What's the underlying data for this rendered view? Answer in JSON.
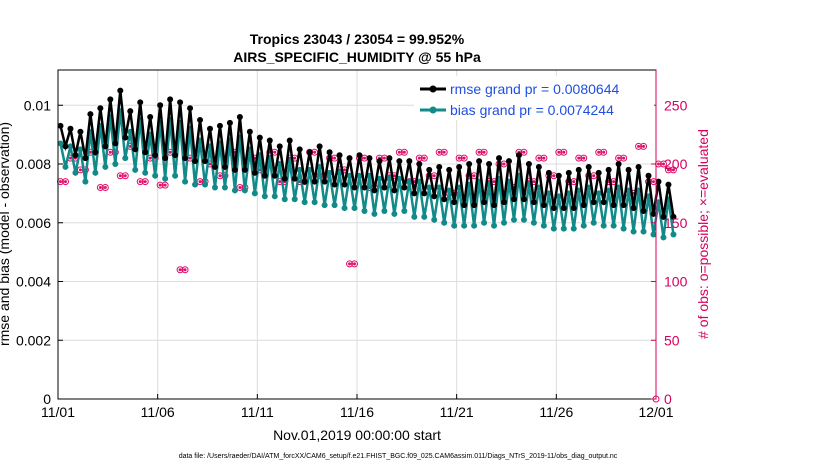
{
  "chart_data": {
    "type": "line",
    "title_line1": "Tropics 23043 / 23054 = 99.952%",
    "title_line2": "AIRS_SPECIFIC_HUMIDITY @ 55 hPa",
    "xlabel": "Nov.01,2019 00:00:00 start",
    "ylabel": "rmse and bias (model - observation)",
    "y2label": "# of obs: o=possible; ×=evaluated",
    "footer": "data file: /Users/raeder/DAI/ATM_forcXX/CAM6_setup/f.e21.FHIST_BGC.f09_025.CAM6assim.011/Diags_NTrS_2019-11/obs_diag_output.nc",
    "xlim": [
      0,
      30
    ],
    "ylim": [
      0,
      0.0112
    ],
    "y2lim": [
      0,
      280
    ],
    "x_ticks": [
      0,
      5,
      10,
      15,
      20,
      25,
      30
    ],
    "x_tick_labels": [
      "11/01",
      "11/06",
      "11/11",
      "11/16",
      "11/21",
      "11/26",
      "12/01"
    ],
    "y_ticks": [
      0,
      0.002,
      0.004,
      0.006,
      0.008,
      0.01
    ],
    "y_tick_labels": [
      "0",
      "0.002",
      "0.004",
      "0.006",
      "0.008",
      "0.01"
    ],
    "y2_ticks": [
      0,
      50,
      100,
      150,
      200,
      250
    ],
    "y2_tick_labels": [
      "0",
      "50",
      "100",
      "150",
      "200",
      "250"
    ],
    "colors": {
      "rmse": "#000000",
      "bias": "#128a8a",
      "obs": "#e0106a",
      "legend_text": "#1f4fe0",
      "right_axis": "#d6005e"
    },
    "series": [
      {
        "name": "rmse grand pr = 0.0080644",
        "start": 0.125,
        "step": 0.25,
        "values": [
          0.0093,
          0.0086,
          0.0092,
          0.0083,
          0.0091,
          0.0082,
          0.0097,
          0.0084,
          0.0099,
          0.0086,
          0.0102,
          0.0087,
          0.0105,
          0.0089,
          0.0098,
          0.0085,
          0.0101,
          0.0084,
          0.0096,
          0.0083,
          0.01,
          0.0082,
          0.0102,
          0.0083,
          0.0101,
          0.0082,
          0.0099,
          0.0081,
          0.0095,
          0.0081,
          0.0092,
          0.0079,
          0.0093,
          0.0079,
          0.0094,
          0.0078,
          0.0096,
          0.0078,
          0.0091,
          0.0077,
          0.0089,
          0.0076,
          0.0088,
          0.0076,
          0.0086,
          0.0075,
          0.0088,
          0.0075,
          0.0085,
          0.0074,
          0.0084,
          0.0074,
          0.0086,
          0.0074,
          0.0084,
          0.0073,
          0.0083,
          0.0073,
          0.0082,
          0.0072,
          0.0083,
          0.0072,
          0.0082,
          0.0071,
          0.0081,
          0.0072,
          0.0082,
          0.0071,
          0.0081,
          0.0072,
          0.0081,
          0.007,
          0.008,
          0.007,
          0.0078,
          0.0069,
          0.0079,
          0.0068,
          0.0078,
          0.0067,
          0.0079,
          0.0066,
          0.008,
          0.0066,
          0.0081,
          0.0067,
          0.008,
          0.0066,
          0.0082,
          0.0067,
          0.0081,
          0.0068,
          0.0083,
          0.0068,
          0.008,
          0.0067,
          0.0079,
          0.0066,
          0.0077,
          0.0065,
          0.0076,
          0.0065,
          0.0077,
          0.0065,
          0.0078,
          0.0066,
          0.0079,
          0.0067,
          0.0077,
          0.0067,
          0.0078,
          0.0066,
          0.008,
          0.0066,
          0.0078,
          0.0065,
          0.0079,
          0.0064,
          0.0076,
          0.0063,
          0.0074,
          0.0062,
          0.0073,
          0.0062
        ]
      },
      {
        "name": "bias grand pr = 0.0074244",
        "start": 0.125,
        "step": 0.25,
        "values": [
          0.0087,
          0.0079,
          0.0086,
          0.0077,
          0.0085,
          0.0074,
          0.0091,
          0.0077,
          0.0093,
          0.0079,
          0.0096,
          0.008,
          0.0098,
          0.0082,
          0.0091,
          0.0078,
          0.0095,
          0.0077,
          0.009,
          0.0076,
          0.0094,
          0.0075,
          0.0095,
          0.0076,
          0.0094,
          0.0074,
          0.0092,
          0.0073,
          0.0088,
          0.0073,
          0.0086,
          0.0072,
          0.0087,
          0.0072,
          0.0088,
          0.0071,
          0.0089,
          0.0071,
          0.0085,
          0.007,
          0.0083,
          0.0069,
          0.0082,
          0.0069,
          0.008,
          0.0068,
          0.0081,
          0.0068,
          0.0078,
          0.0067,
          0.0078,
          0.0067,
          0.0079,
          0.0066,
          0.0077,
          0.0066,
          0.0077,
          0.0065,
          0.0076,
          0.0065,
          0.0076,
          0.0064,
          0.0076,
          0.0063,
          0.0075,
          0.0064,
          0.0075,
          0.0063,
          0.0075,
          0.0064,
          0.0074,
          0.0062,
          0.0074,
          0.0062,
          0.0072,
          0.0061,
          0.0072,
          0.006,
          0.0071,
          0.0059,
          0.0072,
          0.0059,
          0.0073,
          0.0059,
          0.0074,
          0.006,
          0.0073,
          0.0059,
          0.0075,
          0.006,
          0.0074,
          0.0061,
          0.0076,
          0.0061,
          0.0073,
          0.006,
          0.0072,
          0.0059,
          0.007,
          0.0058,
          0.0069,
          0.0058,
          0.007,
          0.0058,
          0.0071,
          0.0059,
          0.0072,
          0.006,
          0.007,
          0.0059,
          0.0071,
          0.0059,
          0.0072,
          0.0058,
          0.0071,
          0.0057,
          0.0071,
          0.0057,
          0.0069,
          0.0056,
          0.0067,
          0.0055,
          0.0068,
          0.0056
        ]
      }
    ],
    "obs_counts": {
      "name": "# of obs",
      "start": 0.125,
      "step": 0.25,
      "values": [
        185,
        185,
        205,
        205,
        195,
        195,
        210,
        210,
        180,
        180,
        210,
        210,
        190,
        190,
        215,
        215,
        185,
        185,
        205,
        205,
        182,
        182,
        210,
        210,
        110,
        110,
        205,
        205,
        185,
        185,
        200,
        200,
        190,
        190,
        210,
        210,
        180,
        180,
        205,
        205,
        195,
        195,
        210,
        210,
        185,
        185,
        205,
        205,
        185,
        185,
        210,
        210,
        190,
        190,
        205,
        205,
        195,
        195,
        115,
        115,
        205,
        205,
        180,
        180,
        205,
        205,
        190,
        190,
        210,
        210,
        185,
        185,
        205,
        205,
        190,
        190,
        210,
        210,
        175,
        175,
        205,
        205,
        190,
        190,
        210,
        210,
        185,
        185,
        200,
        200,
        180,
        180,
        210,
        210,
        185,
        185,
        205,
        205,
        190,
        190,
        210,
        210,
        185,
        185,
        205,
        205,
        190,
        190,
        210,
        210,
        185,
        185,
        205,
        205,
        175,
        175,
        215,
        215,
        185,
        185,
        200,
        200,
        195,
        195
      ]
    }
  }
}
